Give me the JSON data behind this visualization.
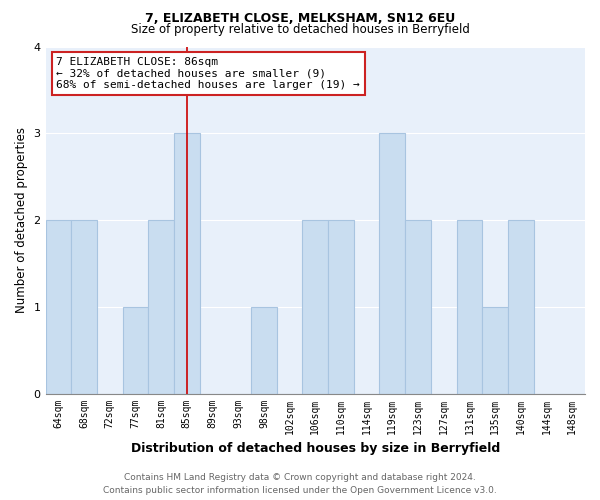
{
  "title": "7, ELIZABETH CLOSE, MELKSHAM, SN12 6EU",
  "subtitle": "Size of property relative to detached houses in Berryfield",
  "xlabel": "Distribution of detached houses by size in Berryfield",
  "ylabel": "Number of detached properties",
  "categories": [
    "64sqm",
    "68sqm",
    "72sqm",
    "77sqm",
    "81sqm",
    "85sqm",
    "89sqm",
    "93sqm",
    "98sqm",
    "102sqm",
    "106sqm",
    "110sqm",
    "114sqm",
    "119sqm",
    "123sqm",
    "127sqm",
    "131sqm",
    "135sqm",
    "140sqm",
    "144sqm",
    "148sqm"
  ],
  "values": [
    2,
    2,
    0,
    1,
    2,
    3,
    0,
    0,
    1,
    0,
    2,
    2,
    0,
    3,
    2,
    0,
    2,
    1,
    2,
    0,
    0
  ],
  "bar_color": "#c9ddf0",
  "bar_edge_color": "#a8c4e0",
  "marker_line_idx": 5,
  "marker_line_color": "#cc0000",
  "annotation_line1": "7 ELIZABETH CLOSE: 86sqm",
  "annotation_line2": "← 32% of detached houses are smaller (9)",
  "annotation_line3": "68% of semi-detached houses are larger (19) →",
  "annotation_box_edge": "#cc2222",
  "ylim": [
    0,
    4
  ],
  "yticks": [
    0,
    1,
    2,
    3,
    4
  ],
  "footer_line1": "Contains HM Land Registry data © Crown copyright and database right 2024.",
  "footer_line2": "Contains public sector information licensed under the Open Government Licence v3.0.",
  "bg_color": "#ffffff",
  "plot_bg_color": "#e8f0fa",
  "grid_color": "#ffffff",
  "title_fontsize": 9,
  "subtitle_fontsize": 8.5,
  "xlabel_fontsize": 9,
  "ylabel_fontsize": 8.5,
  "tick_fontsize": 7,
  "annotation_fontsize": 8,
  "footer_fontsize": 6.5
}
